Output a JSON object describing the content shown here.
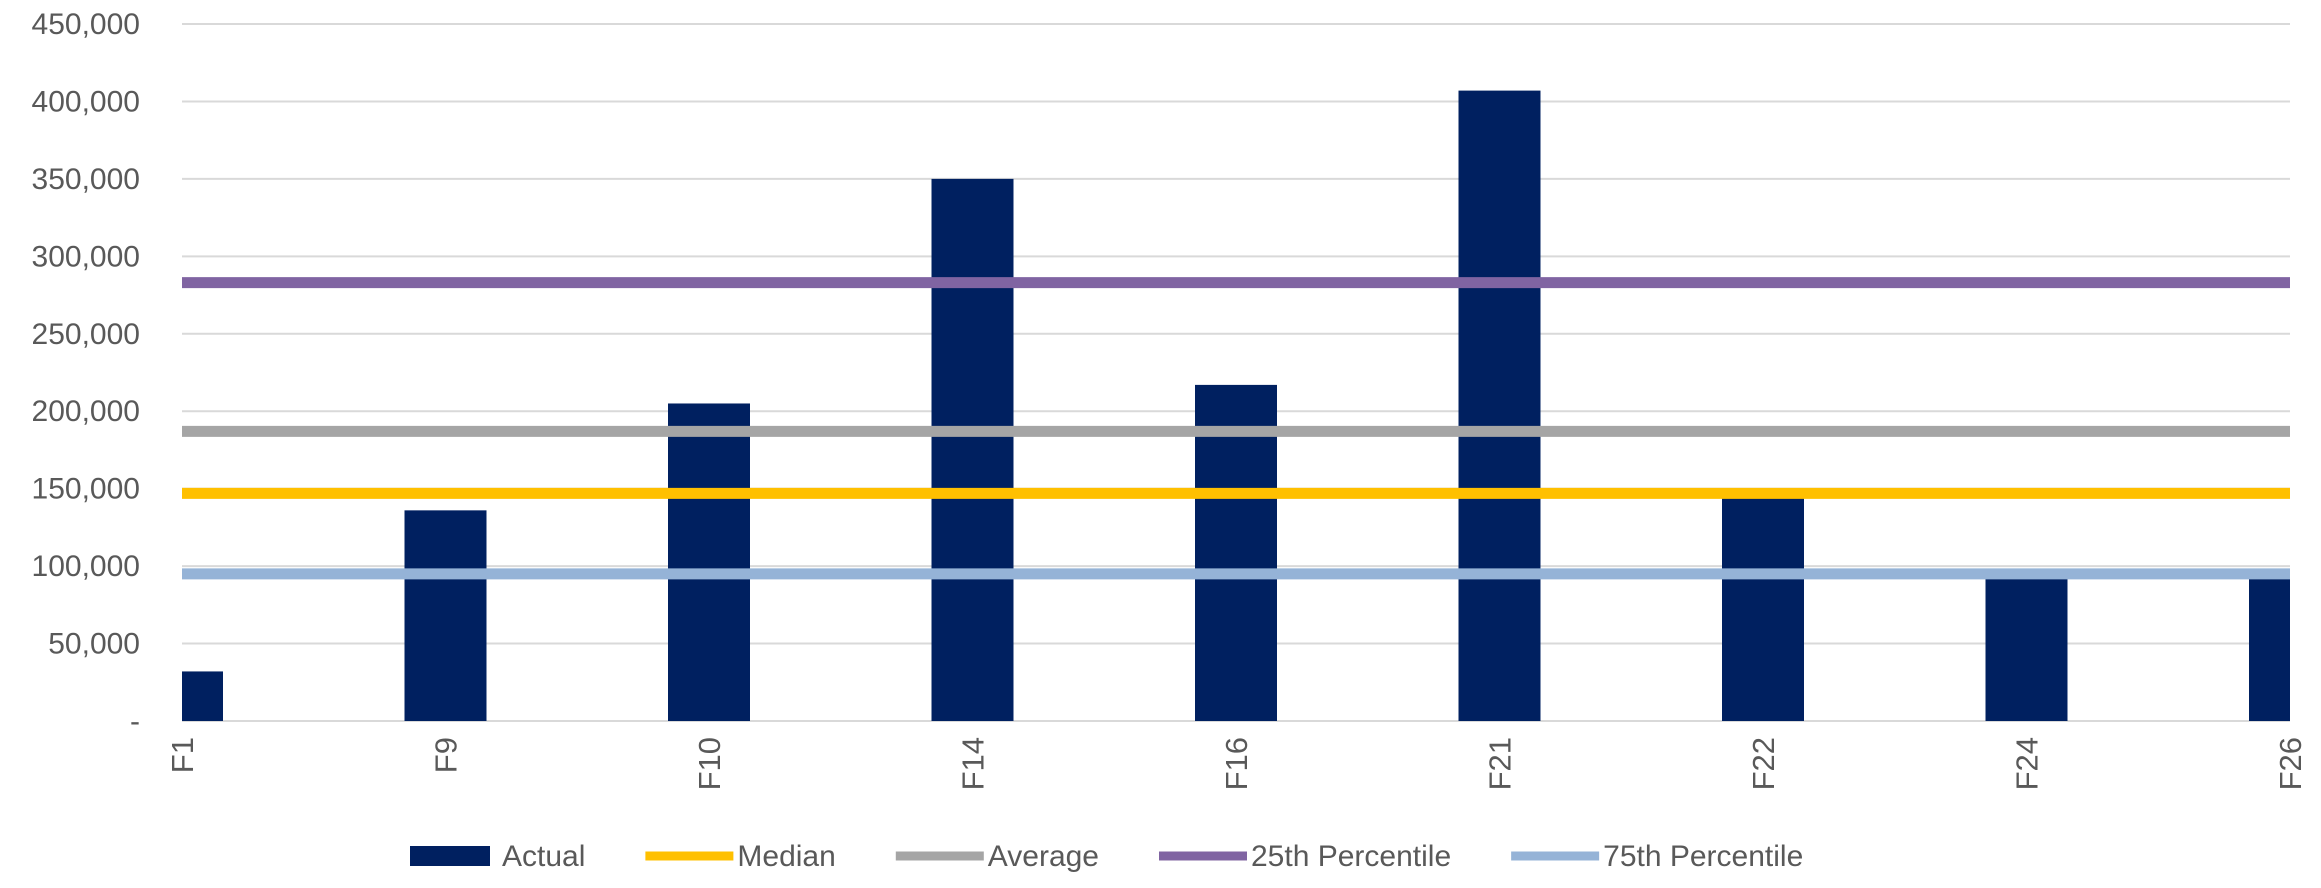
{
  "chart_data": {
    "type": "bar",
    "title": "",
    "xlabel": "",
    "ylabel": "",
    "categories": [
      "F1",
      "F9",
      "F10",
      "F14",
      "F16",
      "F21",
      "F22",
      "F24",
      "F26"
    ],
    "ylim": [
      0,
      450000
    ],
    "yticks": [
      {
        "value": 0,
        "label": "-"
      },
      {
        "value": 50000,
        "label": "50,000"
      },
      {
        "value": 100000,
        "label": "100,000"
      },
      {
        "value": 150000,
        "label": "150,000"
      },
      {
        "value": 200000,
        "label": "200,000"
      },
      {
        "value": 250000,
        "label": "250,000"
      },
      {
        "value": 300000,
        "label": "300,000"
      },
      {
        "value": 350000,
        "label": "350,000"
      },
      {
        "value": 400000,
        "label": "400,000"
      },
      {
        "value": 450000,
        "label": "450,000"
      }
    ],
    "grid": true,
    "legend_position": "bottom",
    "series": [
      {
        "name": "Actual",
        "kind": "bar",
        "color": "#002060",
        "values": [
          32000,
          136000,
          205000,
          350000,
          217000,
          407000,
          145000,
          95000,
          95000
        ]
      }
    ],
    "reference_lines": [
      {
        "name": "Median",
        "value": 147000,
        "color": "#FFC000"
      },
      {
        "name": "Average",
        "value": 187000,
        "color": "#A5A5A5"
      },
      {
        "name": "25th Percentile",
        "value": 283000,
        "color": "#8064A2"
      },
      {
        "name": "75th Percentile",
        "value": 95000,
        "color": "#95B3D7"
      }
    ],
    "legend": [
      {
        "label": "Actual",
        "color": "#002060",
        "shape": "box"
      },
      {
        "label": "Median",
        "color": "#FFC000",
        "shape": "line"
      },
      {
        "label": "Average",
        "color": "#A5A5A5",
        "shape": "line"
      },
      {
        "label": "25th Percentile",
        "color": "#8064A2",
        "shape": "line"
      },
      {
        "label": "75th Percentile",
        "color": "#95B3D7",
        "shape": "line"
      }
    ],
    "gridline_color": "#D9D9D9",
    "text_color": "#595959"
  }
}
